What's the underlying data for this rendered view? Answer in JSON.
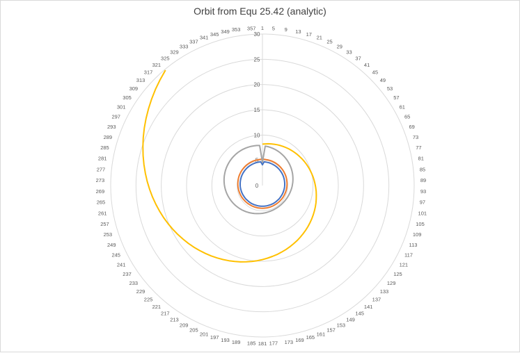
{
  "chart_data": {
    "type": "radar",
    "title": "Orbit from Equ 25.42 (analytic)",
    "category_count": 360,
    "category_labels_shown_every": 4,
    "category_start": 1,
    "radial_ticks": [
      0,
      5,
      10,
      15,
      20,
      25,
      30
    ],
    "rlim": [
      0,
      30
    ],
    "grid": true,
    "legend": "none",
    "series_sample_step_categories": 4,
    "series": [
      {
        "color": "#4472C4",
        "values": [
          4.1,
          4.7,
          4.7,
          4.69,
          4.69,
          4.68,
          4.67,
          4.66,
          4.65,
          4.64,
          4.63,
          4.62,
          4.6,
          4.58,
          4.57,
          4.55,
          4.53,
          4.51,
          4.49,
          4.47,
          4.45,
          4.43,
          4.41,
          4.39,
          4.37,
          4.35,
          4.33,
          4.31,
          4.29,
          4.27,
          4.25,
          4.23,
          4.22,
          4.2,
          4.18,
          4.17,
          4.16,
          4.15,
          4.14,
          4.13,
          4.12,
          4.11,
          4.11,
          4.1,
          4.1,
          4.1,
          4.1,
          4.1,
          4.11,
          4.11,
          4.12,
          4.13,
          4.14,
          4.15,
          4.16,
          4.17,
          4.18,
          4.2,
          4.22,
          4.23,
          4.25,
          4.27,
          4.29,
          4.31,
          4.33,
          4.35,
          4.37,
          4.39,
          4.41,
          4.43,
          4.45,
          4.47,
          4.49,
          4.51,
          4.53,
          4.55,
          4.57,
          4.58,
          4.6,
          4.62,
          4.63,
          4.64,
          4.65,
          4.66,
          4.67,
          4.68,
          4.69,
          4.69,
          4.7,
          4.7
        ]
      },
      {
        "color": "#ED7D31",
        "values": [
          5.2,
          5.2,
          5.19,
          5.19,
          5.18,
          5.18,
          5.17,
          5.16,
          5.15,
          5.13,
          5.12,
          5.1,
          5.08,
          5.06,
          5.04,
          5.02,
          5.0,
          4.98,
          4.96,
          4.93,
          4.91,
          4.89,
          4.86,
          4.84,
          4.81,
          4.79,
          4.77,
          4.74,
          4.72,
          4.7,
          4.68,
          4.66,
          4.63,
          4.62,
          4.6,
          4.58,
          4.56,
          4.55,
          4.54,
          4.53,
          4.52,
          4.51,
          4.51,
          4.5,
          4.5,
          4.5,
          4.5,
          4.5,
          4.51,
          4.51,
          4.52,
          4.53,
          4.54,
          4.55,
          4.56,
          4.58,
          4.6,
          4.62,
          4.63,
          4.66,
          4.68,
          4.7,
          4.72,
          4.74,
          4.77,
          4.79,
          4.81,
          4.84,
          4.86,
          4.89,
          4.91,
          4.93,
          4.96,
          4.98,
          5.0,
          5.02,
          5.04,
          5.06,
          5.08,
          5.1,
          5.12,
          5.13,
          5.15,
          5.16,
          5.17,
          5.18,
          5.18,
          5.19,
          5.19,
          5.2
        ]
      },
      {
        "color": "#A5A5A5",
        "values": [
          4.6,
          7.84,
          7.78,
          7.71,
          7.63,
          7.55,
          7.47,
          7.38,
          7.29,
          7.2,
          7.1,
          7.01,
          6.91,
          6.81,
          6.71,
          6.61,
          6.51,
          6.41,
          6.31,
          6.21,
          6.12,
          6.03,
          5.94,
          5.86,
          5.78,
          5.7,
          5.63,
          5.57,
          5.51,
          5.46,
          5.41,
          5.37,
          5.33,
          5.3,
          5.28,
          5.27,
          5.26,
          5.26,
          5.27,
          5.28,
          5.3,
          5.33,
          5.36,
          5.4,
          5.45,
          5.5,
          5.56,
          5.62,
          5.69,
          5.77,
          5.85,
          5.93,
          6.02,
          6.11,
          6.2,
          6.3,
          6.39,
          6.49,
          6.59,
          6.69,
          6.79,
          6.89,
          6.99,
          7.09,
          7.19,
          7.28,
          7.37,
          7.46,
          7.54,
          7.62,
          7.7,
          7.77,
          7.83,
          7.89,
          7.95,
          7.99,
          8.03,
          8.07,
          8.1,
          8.12,
          8.13,
          8.14,
          8.14,
          8.14,
          8.12,
          8.1,
          8.07,
          8.04,
          8.0,
          7.95
        ]
      },
      {
        "color": "#FFC000",
        "values": [
          8.2,
          8.27,
          8.35,
          8.43,
          8.51,
          8.59,
          8.67,
          8.76,
          8.85,
          8.94,
          9.04,
          9.13,
          9.23,
          9.33,
          9.44,
          9.55,
          9.66,
          9.78,
          9.9,
          10.02,
          10.14,
          10.27,
          10.4,
          10.54,
          10.68,
          10.82,
          10.97,
          11.12,
          11.28,
          11.44,
          11.6,
          11.77,
          11.94,
          12.12,
          12.3,
          12.49,
          12.68,
          12.88,
          13.08,
          13.29,
          13.5,
          13.72,
          13.95,
          14.18,
          14.42,
          14.67,
          14.92,
          15.18,
          15.45,
          15.73,
          16.01,
          16.3,
          16.6,
          16.91,
          17.23,
          17.56,
          17.89,
          18.24,
          18.59,
          18.96,
          19.34,
          19.73,
          20.13,
          20.54,
          20.96,
          21.4,
          21.85,
          22.31,
          22.79,
          23.28,
          23.79,
          24.31,
          24.85,
          25.41,
          25.98,
          26.57,
          27.18,
          27.81,
          28.46,
          29.13,
          29.82
        ]
      }
    ]
  }
}
